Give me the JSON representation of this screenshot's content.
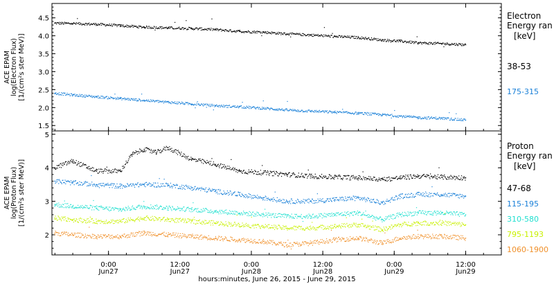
{
  "colors": {
    "black": "#000000",
    "blue": "#1a80d8",
    "cyan": "#22e0d0",
    "yellow": "#c8f000",
    "orange": "#f0902a"
  },
  "x_axis": {
    "title": "hours:minutes, June 26, 2015 - June 29, 2015",
    "ticks": [
      {
        "hours": 24,
        "time": "0:00",
        "date": "Jun27"
      },
      {
        "hours": 36,
        "time": "12:00",
        "date": "Jun27"
      },
      {
        "hours": 48,
        "time": "0:00",
        "date": "Jun28"
      },
      {
        "hours": 60,
        "time": "12:00",
        "date": "Jun28"
      },
      {
        "hours": 72,
        "time": "0:00",
        "date": "Jun29"
      },
      {
        "hours": 84,
        "time": "12:00",
        "date": "Jun29"
      }
    ]
  },
  "chart_data": [
    {
      "type": "scatter",
      "panel": "electron",
      "ylabel": [
        "ACE EPAM",
        "log(Electron Flux)",
        "[1/(cm²s ster MeV)]"
      ],
      "legend_title": [
        "Electron",
        "Energy ran",
        "[keV]"
      ],
      "xlim_hours": [
        14.5,
        90
      ],
      "ylim": [
        1.35,
        4.9
      ],
      "yticks": [
        "1.5",
        "2.0",
        "2.5",
        "3.0",
        "3.5",
        "4.0",
        "4.5"
      ],
      "ytick_values": [
        1.5,
        2.0,
        2.5,
        3.0,
        3.5,
        4.0,
        4.5
      ],
      "series": [
        {
          "name": "38-53",
          "color": "black",
          "hours": [
            15,
            18,
            22,
            26,
            30,
            34,
            38,
            42,
            46,
            50,
            54,
            58,
            62,
            66,
            70,
            73,
            76,
            80,
            84
          ],
          "values": [
            4.35,
            4.34,
            4.32,
            4.28,
            4.24,
            4.22,
            4.2,
            4.17,
            4.12,
            4.1,
            4.05,
            4.02,
            3.98,
            3.95,
            3.88,
            3.85,
            3.8,
            3.78,
            3.75
          ]
        },
        {
          "name": "175-315",
          "color": "blue",
          "hours": [
            15,
            18,
            22,
            26,
            30,
            34,
            38,
            42,
            46,
            50,
            54,
            58,
            62,
            66,
            70,
            73,
            76,
            80,
            84
          ],
          "values": [
            2.4,
            2.35,
            2.3,
            2.25,
            2.2,
            2.15,
            2.1,
            2.05,
            2.02,
            1.98,
            1.93,
            1.9,
            1.87,
            1.84,
            1.8,
            1.76,
            1.72,
            1.7,
            1.65
          ]
        }
      ]
    },
    {
      "type": "scatter",
      "panel": "proton",
      "ylabel": [
        "ACE EPAM",
        "log(Proton Flux)",
        "[1/(cm²s ster MeV)]"
      ],
      "legend_title": [
        "Proton",
        "Energy ran",
        "[keV]"
      ],
      "xlim_hours": [
        14.5,
        90
      ],
      "ylim": [
        1.4,
        5.1
      ],
      "yticks": [
        "2",
        "3",
        "4",
        "5"
      ],
      "ytick_values": [
        2,
        3,
        4,
        5
      ],
      "series": [
        {
          "name": "47-68",
          "color": "black",
          "hours": [
            15,
            18,
            22,
            26,
            28,
            30,
            32,
            34,
            38,
            42,
            46,
            50,
            54,
            58,
            62,
            66,
            70,
            73,
            76,
            80,
            84
          ],
          "values": [
            4.0,
            4.2,
            3.9,
            3.9,
            4.4,
            4.55,
            4.45,
            4.6,
            4.25,
            4.1,
            3.9,
            3.85,
            3.8,
            3.75,
            3.72,
            3.7,
            3.65,
            3.7,
            3.75,
            3.72,
            3.7
          ]
        },
        {
          "name": "115-195",
          "color": "blue",
          "hours": [
            15,
            18,
            22,
            26,
            30,
            34,
            38,
            42,
            46,
            50,
            54,
            58,
            62,
            66,
            70,
            73,
            76,
            80,
            84
          ],
          "values": [
            3.6,
            3.55,
            3.5,
            3.45,
            3.5,
            3.48,
            3.4,
            3.3,
            3.2,
            3.1,
            3.0,
            3.0,
            3.05,
            3.1,
            2.95,
            3.15,
            3.2,
            3.2,
            3.15
          ]
        },
        {
          "name": "310-580",
          "color": "cyan",
          "hours": [
            15,
            18,
            22,
            26,
            30,
            34,
            38,
            42,
            46,
            50,
            54,
            58,
            62,
            66,
            70,
            73,
            76,
            80,
            84
          ],
          "values": [
            2.9,
            2.85,
            2.8,
            2.75,
            2.85,
            2.8,
            2.75,
            2.7,
            2.65,
            2.6,
            2.55,
            2.55,
            2.6,
            2.65,
            2.45,
            2.6,
            2.65,
            2.65,
            2.6
          ]
        },
        {
          "name": "795-1193",
          "color": "yellow",
          "hours": [
            15,
            18,
            22,
            26,
            30,
            34,
            38,
            42,
            46,
            50,
            54,
            58,
            62,
            66,
            70,
            73,
            76,
            80,
            84
          ],
          "values": [
            2.5,
            2.45,
            2.4,
            2.4,
            2.5,
            2.45,
            2.4,
            2.35,
            2.3,
            2.25,
            2.2,
            2.2,
            2.25,
            2.3,
            2.15,
            2.3,
            2.35,
            2.35,
            2.3
          ]
        },
        {
          "name": "1060-1900",
          "color": "orange",
          "hours": [
            15,
            18,
            22,
            26,
            30,
            34,
            38,
            42,
            46,
            50,
            54,
            58,
            62,
            66,
            70,
            73,
            76,
            80,
            84
          ],
          "values": [
            2.05,
            2.0,
            1.95,
            1.95,
            2.05,
            2.0,
            1.95,
            1.9,
            1.85,
            1.8,
            1.7,
            1.75,
            1.85,
            1.9,
            1.75,
            1.9,
            1.95,
            1.95,
            1.9
          ]
        }
      ]
    }
  ]
}
